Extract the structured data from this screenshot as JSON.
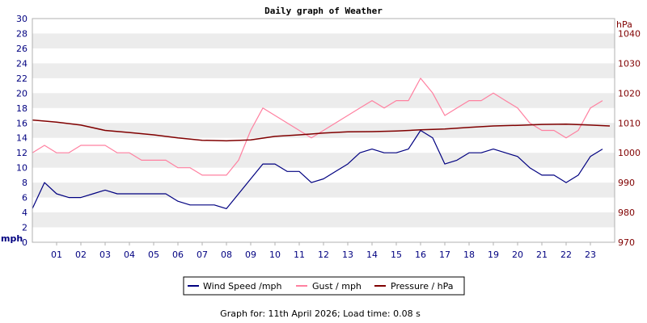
{
  "chart_data": {
    "type": "line",
    "title": "Daily graph of Weather",
    "footer": "Graph for: 11th April 2026; Load time: 0.08 s",
    "y_left": {
      "unit_label": "mph",
      "ylim": [
        0,
        30
      ],
      "ticks": [
        "0",
        "2",
        "4",
        "6",
        "8",
        "10",
        "12",
        "14",
        "16",
        "18",
        "20",
        "22",
        "24",
        "26",
        "28",
        "30"
      ]
    },
    "y_right": {
      "unit_label": "hPa",
      "ylim": [
        970,
        1045
      ],
      "ticks": [
        "970",
        "980",
        "990",
        "1000",
        "1010",
        "1020",
        "1030",
        "1040"
      ]
    },
    "x": {
      "xlim": [
        0,
        24
      ],
      "ticks": [
        "01",
        "02",
        "03",
        "04",
        "05",
        "06",
        "07",
        "08",
        "09",
        "10",
        "11",
        "12",
        "13",
        "14",
        "15",
        "16",
        "17",
        "18",
        "19",
        "20",
        "21",
        "22",
        "23"
      ]
    },
    "grid": "horizontal alternating bands",
    "legend_position": "bottom",
    "series": [
      {
        "name": "Wind Speed /mph",
        "color": "#000080",
        "axis": "left",
        "x": [
          0,
          0.5,
          1,
          1.5,
          2,
          2.5,
          3,
          3.5,
          4,
          4.5,
          5,
          5.5,
          6,
          6.5,
          7,
          7.5,
          8,
          8.5,
          9,
          9.5,
          10,
          10.5,
          11,
          11.5,
          12,
          12.5,
          13,
          13.5,
          14,
          14.5,
          15,
          15.5,
          16,
          16.5,
          17,
          17.5,
          18,
          18.5,
          19,
          19.5,
          20,
          20.5,
          21,
          21.5,
          22,
          22.5,
          23,
          23.5
        ],
        "values": [
          4.5,
          8,
          6.5,
          6,
          6,
          6.5,
          7,
          6.5,
          6.5,
          6.5,
          6.5,
          6.5,
          5.5,
          5,
          5,
          5,
          4.5,
          6.5,
          8.5,
          10.5,
          10.5,
          9.5,
          9.5,
          8,
          8.5,
          9.5,
          10.5,
          12,
          12.5,
          12,
          12,
          12.5,
          15,
          14,
          10.5,
          11,
          12,
          12,
          12.5,
          12,
          11.5,
          10,
          9,
          9,
          8,
          9,
          11.5,
          12.5
        ]
      },
      {
        "name": "Gust / mph",
        "color": "#ff80a0",
        "axis": "left",
        "x": [
          0,
          0.5,
          1,
          1.5,
          2,
          2.5,
          3,
          3.5,
          4,
          4.5,
          5,
          5.5,
          6,
          6.5,
          7,
          7.5,
          8,
          8.5,
          9,
          9.5,
          10,
          10.5,
          11,
          11.5,
          12,
          12.5,
          13,
          13.5,
          14,
          14.5,
          15,
          15.5,
          16,
          16.5,
          17,
          17.5,
          18,
          18.5,
          19,
          19.5,
          20,
          20.5,
          21,
          21.5,
          22,
          22.5,
          23,
          23.5
        ],
        "values": [
          12,
          13,
          12,
          12,
          13,
          13,
          13,
          12,
          12,
          11,
          11,
          11,
          10,
          10,
          9,
          9,
          9,
          11,
          15,
          18,
          17,
          16,
          15,
          14,
          15,
          16,
          17,
          18,
          19,
          18,
          19,
          19,
          22,
          20,
          17,
          18,
          19,
          19,
          20,
          19,
          18,
          16,
          15,
          15,
          14,
          15,
          18,
          19
        ]
      },
      {
        "name": "Pressure / hPa",
        "color": "#800000",
        "axis": "right",
        "x": [
          0,
          1,
          2,
          3,
          4,
          5,
          6,
          7,
          8,
          9,
          10,
          11,
          12,
          13,
          14,
          15,
          16,
          17,
          18,
          19,
          20,
          21,
          22,
          23,
          23.8
        ],
        "values": [
          1011,
          1010.3,
          1009.3,
          1007.5,
          1006.8,
          1006,
          1005,
          1004.2,
          1004,
          1004.3,
          1005.5,
          1006,
          1006.6,
          1007,
          1007.1,
          1007.3,
          1007.7,
          1008,
          1008.5,
          1009,
          1009.2,
          1009.5,
          1009.6,
          1009.3,
          1009
        ]
      }
    ]
  }
}
